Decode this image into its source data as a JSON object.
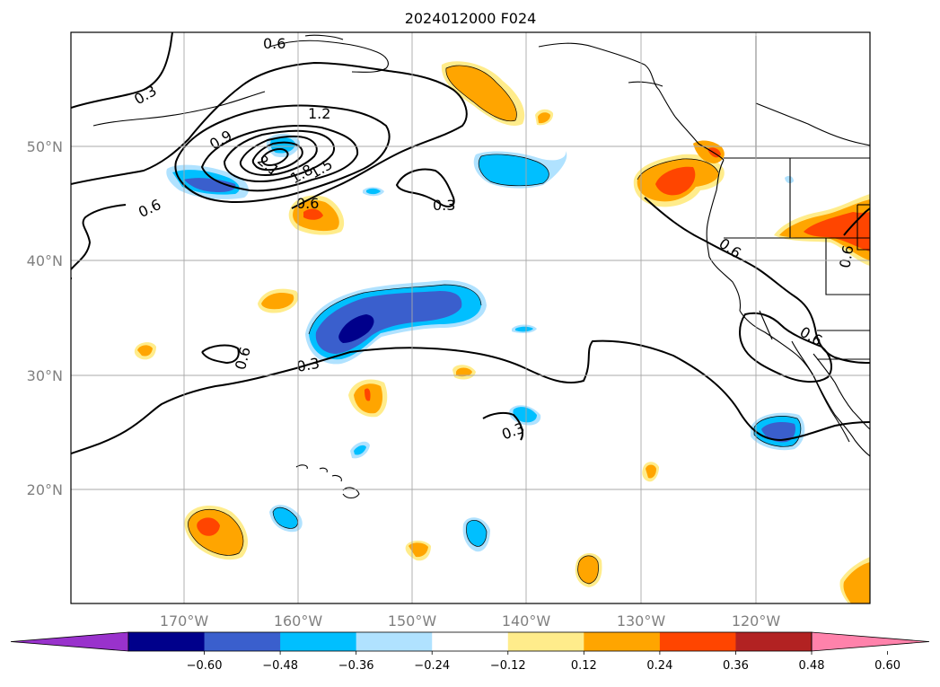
{
  "title": "2024012000 F024",
  "map": {
    "lat_labels": [
      "50°N",
      "40°N",
      "30°N",
      "20°N"
    ],
    "lon_labels": [
      "170°W",
      "160°W",
      "150°W",
      "140°W",
      "130°W",
      "120°W"
    ],
    "grid": true
  },
  "contour_labels": [
    "0.6",
    "0.3",
    "0.9",
    "1.2",
    "2.1",
    "1.8",
    "1.5",
    "0.6",
    "0.6",
    "0.3",
    "0.6",
    "0.6",
    "0.6",
    "0.3",
    "0.3",
    "0.6"
  ],
  "colorbar": {
    "tick_labels": [
      "−0.60",
      "−0.48",
      "−0.36",
      "−0.24",
      "−0.12",
      "0.12",
      "0.24",
      "0.36",
      "0.48",
      "0.60"
    ],
    "colors": [
      "#9932cc",
      "#00008b",
      "#3a5fcd",
      "#00bfff",
      "#b0e2ff",
      "#ffffff",
      "#ffec8b",
      "#ffa500",
      "#ff4500",
      "#b22222",
      "#ff82ab"
    ],
    "extend": "both"
  }
}
